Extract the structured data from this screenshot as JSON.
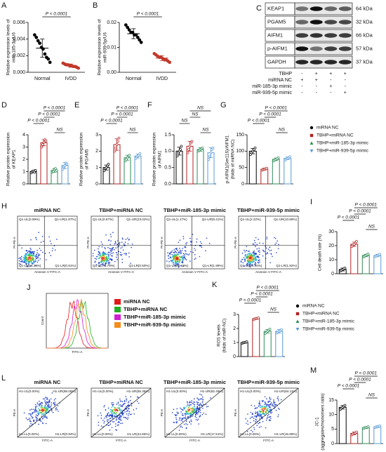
{
  "panels": {
    "A": {
      "letter": "A",
      "type": "dot",
      "ylabel": [
        "Relative expression levels of",
        "miR-185-3p/U6"
      ],
      "categories": [
        "Normal",
        "IVDD"
      ],
      "ylim": [
        0,
        0.006
      ],
      "yticks": [
        {
          "value": 0,
          "label": "0.000"
        },
        {
          "value": 0.002,
          "label": "0.002"
        },
        {
          "value": 0.004,
          "label": "0.004"
        },
        {
          "value": 0.006,
          "label": "0.006"
        }
      ],
      "groups": [
        {
          "color": "#000000",
          "mean": 0.0029,
          "error": 0.0011,
          "points": [
            0.0045,
            0.0042,
            0.0038,
            0.0035,
            0.003,
            0.0028,
            0.0022,
            0.0018,
            0.0016,
            0.0012
          ]
        },
        {
          "color": "#c0392b",
          "mean": 0.0008,
          "error": 0.0002,
          "points": [
            0.0011,
            0.001,
            0.0009,
            0.0009,
            0.0008,
            0.0008,
            0.0007,
            0.0007,
            0.0006,
            0.0005
          ]
        }
      ],
      "brackets": [
        "P < 0.0001"
      ]
    },
    "B": {
      "letter": "B",
      "type": "dot",
      "ylabel": [
        "Relative expression levels of",
        "miR-939-5p/U6"
      ],
      "categories": [
        "Normal",
        "IVDD"
      ],
      "ylim": [
        0,
        0.02
      ],
      "yticks": [
        {
          "value": 0,
          "label": "0.00"
        },
        {
          "value": 0.01,
          "label": "0.01"
        },
        {
          "value": 0.02,
          "label": "0.02"
        }
      ],
      "groups": [
        {
          "color": "#000000",
          "mean": 0.0155,
          "error": 0.002,
          "points": [
            0.019,
            0.018,
            0.017,
            0.016,
            0.016,
            0.015,
            0.015,
            0.014,
            0.013,
            0.012
          ]
        },
        {
          "color": "#c0392b",
          "mean": 0.0057,
          "error": 0.001,
          "points": [
            0.0075,
            0.007,
            0.0065,
            0.006,
            0.006,
            0.0055,
            0.005,
            0.005,
            0.0045,
            0.004
          ]
        }
      ],
      "brackets": [
        "P < 0.0001"
      ]
    },
    "D": {
      "letter": "D",
      "type": "bar",
      "ylabel": [
        "Relative protein expression",
        "of KEAP1"
      ],
      "ylim": [
        0,
        4
      ],
      "yticks": [
        0,
        1,
        2,
        3,
        4
      ],
      "groups": [
        {
          "color": "#000000",
          "mean": 1.0,
          "error": 0.08,
          "points": [
            0.9,
            1.0,
            1.05,
            0.95,
            1.1
          ]
        },
        {
          "color": "#b22222",
          "mean": 3.35,
          "error": 0.25,
          "points": [
            3.0,
            3.2,
            3.4,
            3.6,
            3.5
          ]
        },
        {
          "color": "#2e8b57",
          "mean": 1.1,
          "error": 0.15,
          "points": [
            0.95,
            1.0,
            1.15,
            1.25,
            1.1
          ]
        },
        {
          "color": "#5b9bd5",
          "mean": 1.5,
          "error": 0.25,
          "points": [
            1.2,
            1.4,
            1.5,
            1.7,
            1.6
          ]
        }
      ],
      "brackets": [
        "P < 0.0001",
        "P < 0.0001",
        "P < 0.0001",
        "NS"
      ]
    },
    "E": {
      "letter": "E",
      "type": "bar",
      "ylabel": [
        "Relative protein expression",
        "of PGAM5"
      ],
      "ylim": [
        0,
        3
      ],
      "yticks": [
        0,
        1,
        2,
        3
      ],
      "groups": [
        {
          "color": "#000000",
          "mean": 1.0,
          "error": 0.15,
          "points": [
            0.8,
            0.95,
            1.0,
            1.1,
            1.2
          ]
        },
        {
          "color": "#b22222",
          "mean": 2.4,
          "error": 0.35,
          "points": [
            2.0,
            2.2,
            2.4,
            2.6,
            2.8
          ]
        },
        {
          "color": "#2e8b57",
          "mean": 1.6,
          "error": 0.15,
          "points": [
            1.4,
            1.5,
            1.6,
            1.7,
            1.75
          ]
        },
        {
          "color": "#5b9bd5",
          "mean": 1.7,
          "error": 0.12,
          "points": [
            1.55,
            1.65,
            1.7,
            1.75,
            1.85
          ]
        }
      ],
      "brackets": [
        "P < 0.0001",
        "P < 0.0001",
        "P < 0.0001",
        "NS"
      ]
    },
    "F": {
      "letter": "F",
      "type": "bar",
      "ylabel": [
        "Relative protein expression",
        "of AIFM1"
      ],
      "ylim": [
        0,
        1.5
      ],
      "yticks": [
        {
          "value": 0,
          "label": "0.0"
        },
        {
          "value": 0.5,
          "label": "0.5"
        },
        {
          "value": 1,
          "label": "1.0"
        },
        {
          "value": 1.5,
          "label": "1.5"
        }
      ],
      "groups": [
        {
          "color": "#000000",
          "mean": 1.0,
          "error": 0.12,
          "points": [
            0.85,
            0.95,
            1.0,
            1.05,
            1.15
          ]
        },
        {
          "color": "#b22222",
          "mean": 1.15,
          "error": 0.15,
          "points": [
            0.95,
            1.05,
            1.15,
            1.25,
            1.3
          ]
        },
        {
          "color": "#2e8b57",
          "mean": 1.05,
          "error": 0.05,
          "points": [
            1.0,
            1.02,
            1.05,
            1.08,
            1.1
          ]
        },
        {
          "color": "#5b9bd5",
          "mean": 0.95,
          "error": 0.15,
          "points": [
            0.75,
            0.85,
            0.95,
            1.05,
            1.1
          ]
        }
      ],
      "brackets": [
        "NS",
        "NS",
        "NS",
        "NS"
      ]
    },
    "G": {
      "letter": "G",
      "type": "bar",
      "ylabel": [
        "p-AIFM1(Ser116)/AIFM1",
        "(folds of miRNA NC)"
      ],
      "ylim": [
        0,
        150
      ],
      "yticks": [
        0,
        50,
        100,
        150
      ],
      "groups": [
        {
          "color": "#000000",
          "mean": 100,
          "error": 8,
          "points": [
            90,
            95,
            100,
            105,
            110
          ]
        },
        {
          "color": "#b22222",
          "mean": 45,
          "error": 3,
          "points": [
            42,
            44,
            45,
            46,
            48
          ]
        },
        {
          "color": "#2e8b57",
          "mean": 75,
          "error": 4,
          "points": [
            70,
            73,
            75,
            77,
            80
          ]
        },
        {
          "color": "#5b9bd5",
          "mean": 78,
          "error": 4,
          "points": [
            73,
            76,
            78,
            80,
            83
          ]
        }
      ],
      "brackets": [
        "P < 0.0001",
        "P < 0.0001",
        "P < 0.0001",
        "NS"
      ],
      "legend": [
        "miRNA NC",
        "TBHP+miRNA NC",
        "TBHP+miR-185-3p mimic",
        "TBHP+miR-939-5p mimic"
      ]
    },
    "I": {
      "letter": "I",
      "type": "bar",
      "ylabel": [
        "Cell death rate (%)"
      ],
      "ylim": [
        0,
        30
      ],
      "yticks": [
        0,
        10,
        20,
        30
      ],
      "groups": [
        {
          "color": "#000000",
          "mean": 3,
          "error": 1,
          "points": [
            2,
            2.5,
            3,
            3.5,
            4
          ]
        },
        {
          "color": "#b22222",
          "mean": 21,
          "error": 1.5,
          "points": [
            19.5,
            20.5,
            21,
            22,
            23
          ]
        },
        {
          "color": "#2e8b57",
          "mean": 13,
          "error": 0.8,
          "points": [
            12,
            12.5,
            13,
            13.5,
            14
          ]
        },
        {
          "color": "#5b9bd5",
          "mean": 13,
          "error": 0.8,
          "points": [
            12.2,
            12.6,
            13,
            13.4,
            13.8
          ]
        }
      ],
      "brackets": [
        "P < 0.0001",
        "P < 0.0001",
        "P < 0.0001",
        "NS"
      ]
    },
    "K": {
      "letter": "K",
      "type": "bar",
      "ylabel": [
        "ROS levels",
        "(folds of miR-NC)"
      ],
      "ylim": [
        0,
        3
      ],
      "yticks": [
        0,
        1,
        2,
        3
      ],
      "groups": [
        {
          "color": "#000000",
          "mean": 1.0,
          "error": 0.05,
          "points": [
            0.95,
            0.98,
            1.0,
            1.02,
            1.05
          ]
        },
        {
          "color": "#b22222",
          "mean": 2.7,
          "error": 0.05,
          "points": [
            2.65,
            2.68,
            2.7,
            2.72,
            2.75
          ]
        },
        {
          "color": "#2e8b57",
          "mean": 1.8,
          "error": 0.12,
          "points": [
            1.65,
            1.72,
            1.8,
            1.88,
            1.95
          ]
        },
        {
          "color": "#5b9bd5",
          "mean": 1.8,
          "error": 0.12,
          "points": [
            1.68,
            1.75,
            1.8,
            1.85,
            1.92
          ]
        }
      ],
      "brackets": [
        "P < 0.0001",
        "P < 0.0001",
        "P < 0.0001",
        "NS"
      ],
      "legend": [
        "miRNA NC",
        "TBHP+miRNA NC",
        "TBHP+miR-185-3p mimic",
        "TBHP+miR-939-5p mimic"
      ]
    },
    "M": {
      "letter": "M",
      "type": "bar",
      "ylabel": [
        "JC-1",
        "(aggregates/monomers ratio)"
      ],
      "ylim": [
        0,
        15
      ],
      "yticks": [
        0,
        5,
        10,
        15
      ],
      "groups": [
        {
          "color": "#000000",
          "mean": 12.5,
          "error": 0.6,
          "points": [
            11.8,
            12.2,
            12.5,
            12.9,
            13.2
          ]
        },
        {
          "color": "#b22222",
          "mean": 3.5,
          "error": 0.5,
          "points": [
            3.0,
            3.3,
            3.5,
            3.7,
            4.0
          ]
        },
        {
          "color": "#2e8b57",
          "mean": 5.5,
          "error": 0.3,
          "points": [
            5.2,
            5.4,
            5.5,
            5.6,
            5.8
          ]
        },
        {
          "color": "#5b9bd5",
          "mean": 5.8,
          "error": 0.3,
          "points": [
            5.5,
            5.7,
            5.8,
            5.9,
            6.1
          ]
        }
      ],
      "brackets": [
        "P < 0.0001",
        "P < 0.0001",
        "P < 0.0001",
        "NS"
      ]
    }
  },
  "blot": {
    "letter": "C",
    "proteins": [
      "KEAP1",
      "PGAM5",
      "AIFM1",
      "p-AIFM1",
      "GAPDH"
    ],
    "sizes": [
      "64 kDa",
      "32 kDa",
      "66 kDa",
      "57 kDa",
      "37 kDa"
    ],
    "treatments": [
      {
        "label": "TBHP",
        "signs": [
          "-",
          "+",
          "+",
          "+"
        ]
      },
      {
        "label": "miRNA NC",
        "signs": [
          "+",
          "+",
          "-",
          "-"
        ]
      },
      {
        "label": "miR-185-3p mimic",
        "signs": [
          "-",
          "-",
          "+",
          "-"
        ]
      },
      {
        "label": "miR-939-5p mimic",
        "signs": [
          "-",
          "-",
          "-",
          "+"
        ]
      }
    ]
  },
  "flow_H": {
    "letter": "H",
    "xlabel": "Annexin V FITC-A",
    "ylabel": "PI-PE-A",
    "plots": [
      {
        "title": "miRNA NC",
        "quadrants": [
          "Q1-UL(0.99%)",
          "Q1-UR(1.87%)",
          "Q1-LL(96.30%)",
          "Q1-LR(0.91%)"
        ]
      },
      {
        "title": "TBHP+miRNA NC",
        "quadrants": [
          "Q1-UL(0.67%)",
          "Q1-UR(23.02%)",
          "Q1-LL(75.79%)",
          "Q1-LR(0.50%)"
        ]
      },
      {
        "title": "TBHP+miR-185-3p mimic",
        "quadrants": [
          "Q1-UL(1.17%)",
          "Q1-UR(9.41%)",
          "Q1-LL(88.43%)",
          "Q1-LR(1.99%)"
        ]
      },
      {
        "title": "TBHP+miR-939-5p mimic",
        "quadrants": [
          "Q1-UL(2.32%)",
          "Q1-UR(10.89%)",
          "Q1-LL(84.90%)",
          "Q1-LR(1.92%)"
        ]
      }
    ]
  },
  "flow_L": {
    "letter": "L",
    "xlabel": "FITC-A",
    "ylabel": "PE-A",
    "plots": [
      {
        "title": "miRNA NC",
        "quadrants": [
          "H1-UL(0.00%)",
          "H1-UR(98.06%)",
          "H1-LL(0.00%)",
          "H1-LR(0.94%)"
        ]
      },
      {
        "title": "TBHP+miRNA NC",
        "quadrants": [
          "H1-UL(0.00%)",
          "H1-UR(55.35%)",
          "H1-LL(0.00%)",
          "H1-LR(44.65%)"
        ]
      },
      {
        "title": "TBHP+miR-185-3p mimic",
        "quadrants": [
          "H1-UL(0.00%)",
          "H1-UR(82.49%)",
          "H1-LL(0.00%)",
          "H1-LR(17.51%)"
        ]
      },
      {
        "title": "TBHP+miR-939-5p mimic",
        "quadrants": [
          "H1-UL(0.00%)",
          "H1-UR(84.11%)",
          "H1-LL(0.00%)",
          "H1-LR(15.89%)"
        ]
      }
    ]
  },
  "histogram_J": {
    "letter": "J",
    "xlabel": "FITC-A",
    "ylabel": "Count",
    "legend": [
      {
        "name": "miRNA NC",
        "color": "#e31a1c"
      },
      {
        "name": "TBHP+miRNA NC",
        "color": "#22b022"
      },
      {
        "name": "TBHP+miR-185-3p mimic",
        "color": "#d01fd0"
      },
      {
        "name": "TBHP+miR-939-5p mimic",
        "color": "#f28c1a"
      }
    ]
  }
}
